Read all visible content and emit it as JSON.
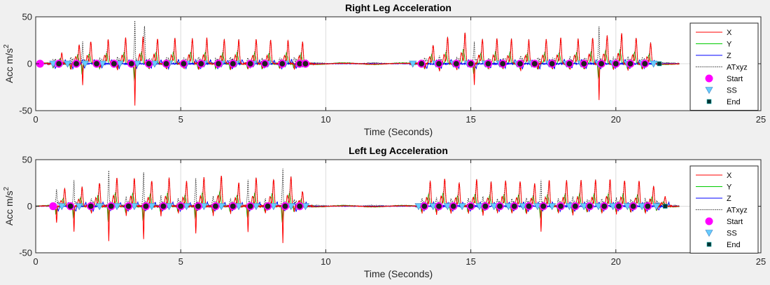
{
  "chart_data": [
    {
      "type": "line",
      "title": "Right Leg Acceleration",
      "xlabel": "Time (Seconds)",
      "ylabel_main": "Acc m/s",
      "ylabel_sup": "2",
      "xlim": [
        0,
        25
      ],
      "ylim": [
        -50,
        50
      ],
      "xticks": [
        "0",
        "5",
        "10",
        "15",
        "20",
        "25"
      ],
      "yticks": [
        "50",
        "0",
        "-50"
      ],
      "grid": true,
      "legend_position": "right",
      "series": [
        {
          "name": "X",
          "color": "#ff0000",
          "style": "solid"
        },
        {
          "name": "Y",
          "color": "#00cc00",
          "style": "solid"
        },
        {
          "name": "Z",
          "color": "#0000ff",
          "style": "solid"
        },
        {
          "name": "ATxyz",
          "color": "#000000",
          "style": "dotted"
        }
      ],
      "markers": [
        {
          "name": "Start",
          "color": "#ff00ff"
        },
        {
          "name": "SS",
          "color": "#66ccff"
        },
        {
          "name": "End",
          "color": "#003333"
        }
      ],
      "active_segments": [
        [
          0.5,
          9.5
        ],
        [
          13.0,
          21.3
        ]
      ],
      "stride_peaks": [
        {
          "t": 0.9,
          "x": 11,
          "neg": -4
        },
        {
          "t": 1.5,
          "x": 20,
          "neg": -6
        },
        {
          "t": 1.9,
          "x": 24,
          "neg": -23
        },
        {
          "t": 2.5,
          "x": 26,
          "neg": -5
        },
        {
          "t": 3.1,
          "x": 27,
          "neg": -6
        },
        {
          "t": 3.7,
          "x": 28,
          "neg": -44
        },
        {
          "t": 4.2,
          "x": 27,
          "neg": -5
        },
        {
          "t": 4.8,
          "x": 27,
          "neg": -6
        },
        {
          "t": 5.4,
          "x": 27,
          "neg": -5
        },
        {
          "t": 5.9,
          "x": 27,
          "neg": -7
        },
        {
          "t": 6.5,
          "x": 26,
          "neg": -5
        },
        {
          "t": 7.0,
          "x": 26,
          "neg": -6
        },
        {
          "t": 7.6,
          "x": 26,
          "neg": -5
        },
        {
          "t": 8.1,
          "x": 25,
          "neg": -6
        },
        {
          "t": 8.7,
          "x": 25,
          "neg": -5
        },
        {
          "t": 9.2,
          "x": 23,
          "neg": -6
        },
        {
          "t": 13.7,
          "x": 20,
          "neg": -6
        },
        {
          "t": 14.2,
          "x": 28,
          "neg": -8
        },
        {
          "t": 14.8,
          "x": 33,
          "neg": -6
        },
        {
          "t": 15.4,
          "x": 26,
          "neg": -22
        },
        {
          "t": 15.9,
          "x": 27,
          "neg": -6
        },
        {
          "t": 16.4,
          "x": 26,
          "neg": -5
        },
        {
          "t": 17.0,
          "x": 25,
          "neg": -7
        },
        {
          "t": 17.6,
          "x": 26,
          "neg": -6
        },
        {
          "t": 18.1,
          "x": 27,
          "neg": -5
        },
        {
          "t": 18.7,
          "x": 26,
          "neg": -7
        },
        {
          "t": 19.2,
          "x": 28,
          "neg": -6
        },
        {
          "t": 19.7,
          "x": 30,
          "neg": -38
        },
        {
          "t": 20.2,
          "x": 32,
          "neg": -6
        },
        {
          "t": 20.7,
          "x": 28,
          "neg": -7
        },
        {
          "t": 21.2,
          "x": 22,
          "neg": -6
        }
      ],
      "atxyz_spike": {
        "t": 3.75,
        "value": 40
      },
      "start_markers_t": [
        0.15,
        0.8,
        1.4,
        2.1,
        2.7,
        3.3,
        3.9,
        4.5,
        5.1,
        5.7,
        6.3,
        6.8,
        7.4,
        7.9,
        8.5,
        9.1,
        9.3,
        13.3,
        13.9,
        14.5,
        15.0,
        15.6,
        16.1,
        16.7,
        17.2,
        17.8,
        18.4,
        18.9,
        19.5,
        20.0,
        20.5,
        21.0
      ],
      "ss_markers_t": [
        0.6,
        1.1,
        1.7,
        2.3,
        2.9,
        3.5,
        4.1,
        4.6,
        5.2,
        5.8,
        6.4,
        6.9,
        7.5,
        8.0,
        8.6,
        9.2,
        13.0,
        13.8,
        14.4,
        14.9,
        15.5,
        16.0,
        16.6,
        17.1,
        17.7,
        18.3,
        18.8,
        19.4,
        19.9,
        20.4,
        20.9,
        21.3
      ],
      "end_markers_t": [
        21.5
      ]
    },
    {
      "type": "line",
      "title": "Left Leg Acceleration",
      "xlabel": "Time (Seconds)",
      "ylabel_main": "Acc m/s",
      "ylabel_sup": "2",
      "xlim": [
        0,
        25
      ],
      "ylim": [
        -50,
        50
      ],
      "xticks": [
        "0",
        "5",
        "10",
        "15",
        "20",
        "25"
      ],
      "yticks": [
        "50",
        "0",
        "-50"
      ],
      "grid": true,
      "legend_position": "right",
      "series": [
        {
          "name": "X",
          "color": "#ff0000",
          "style": "solid"
        },
        {
          "name": "Y",
          "color": "#00cc00",
          "style": "solid"
        },
        {
          "name": "Z",
          "color": "#0000ff",
          "style": "solid"
        },
        {
          "name": "ATxyz",
          "color": "#000000",
          "style": "dotted"
        }
      ],
      "markers": [
        {
          "name": "Start",
          "color": "#ff00ff"
        },
        {
          "name": "SS",
          "color": "#66ccff"
        },
        {
          "name": "End",
          "color": "#003333"
        }
      ],
      "active_segments": [
        [
          0.6,
          9.4
        ],
        [
          13.2,
          21.8
        ]
      ],
      "stride_peaks": [
        {
          "t": 1.0,
          "x": 19,
          "neg": -18
        },
        {
          "t": 1.6,
          "x": 20,
          "neg": -28
        },
        {
          "t": 2.2,
          "x": 25,
          "neg": -8
        },
        {
          "t": 2.8,
          "x": 31,
          "neg": -38
        },
        {
          "t": 3.4,
          "x": 30,
          "neg": -10
        },
        {
          "t": 4.0,
          "x": 27,
          "neg": -36
        },
        {
          "t": 4.6,
          "x": 30,
          "neg": -10
        },
        {
          "t": 5.2,
          "x": 27,
          "neg": -8
        },
        {
          "t": 5.8,
          "x": 31,
          "neg": -30
        },
        {
          "t": 6.4,
          "x": 33,
          "neg": -10
        },
        {
          "t": 7.0,
          "x": 26,
          "neg": -8
        },
        {
          "t": 7.6,
          "x": 30,
          "neg": -28
        },
        {
          "t": 8.2,
          "x": 29,
          "neg": -8
        },
        {
          "t": 8.8,
          "x": 32,
          "neg": -40
        },
        {
          "t": 9.2,
          "x": 16,
          "neg": -6
        },
        {
          "t": 13.6,
          "x": 27,
          "neg": -7
        },
        {
          "t": 14.1,
          "x": 30,
          "neg": -10
        },
        {
          "t": 14.6,
          "x": 25,
          "neg": -8
        },
        {
          "t": 15.2,
          "x": 28,
          "neg": -8
        },
        {
          "t": 15.7,
          "x": 26,
          "neg": -10
        },
        {
          "t": 16.2,
          "x": 28,
          "neg": -7
        },
        {
          "t": 16.7,
          "x": 27,
          "neg": -8
        },
        {
          "t": 17.2,
          "x": 24,
          "neg": -9
        },
        {
          "t": 17.7,
          "x": 28,
          "neg": -28
        },
        {
          "t": 18.3,
          "x": 27,
          "neg": -8
        },
        {
          "t": 18.8,
          "x": 28,
          "neg": -10
        },
        {
          "t": 19.3,
          "x": 28,
          "neg": -7
        },
        {
          "t": 19.8,
          "x": 29,
          "neg": -8
        },
        {
          "t": 20.3,
          "x": 28,
          "neg": -8
        },
        {
          "t": 20.8,
          "x": 27,
          "neg": -7
        },
        {
          "t": 21.3,
          "x": 22,
          "neg": -8
        },
        {
          "t": 21.7,
          "x": 10,
          "neg": -4
        }
      ],
      "atxyz_spike": null,
      "start_markers_t": [
        0.6,
        1.2,
        1.9,
        2.6,
        3.2,
        3.8,
        4.4,
        5.0,
        5.6,
        6.2,
        6.8,
        7.4,
        8.0,
        8.6,
        9.1,
        13.4,
        13.9,
        14.4,
        15.0,
        15.5,
        16.0,
        16.5,
        17.0,
        17.5,
        18.1,
        18.6,
        19.1,
        19.6,
        20.1,
        20.6,
        21.1
      ],
      "ss_markers_t": [
        0.9,
        1.5,
        2.2,
        2.8,
        3.4,
        4.0,
        4.6,
        5.2,
        5.8,
        6.4,
        7.0,
        7.6,
        8.2,
        8.8,
        9.3,
        13.2,
        13.7,
        14.2,
        14.7,
        15.3,
        15.8,
        16.3,
        16.8,
        17.3,
        17.8,
        18.4,
        18.9,
        19.4,
        19.9,
        20.4,
        20.9,
        21.4
      ],
      "end_markers_t": [
        21.7
      ]
    }
  ]
}
